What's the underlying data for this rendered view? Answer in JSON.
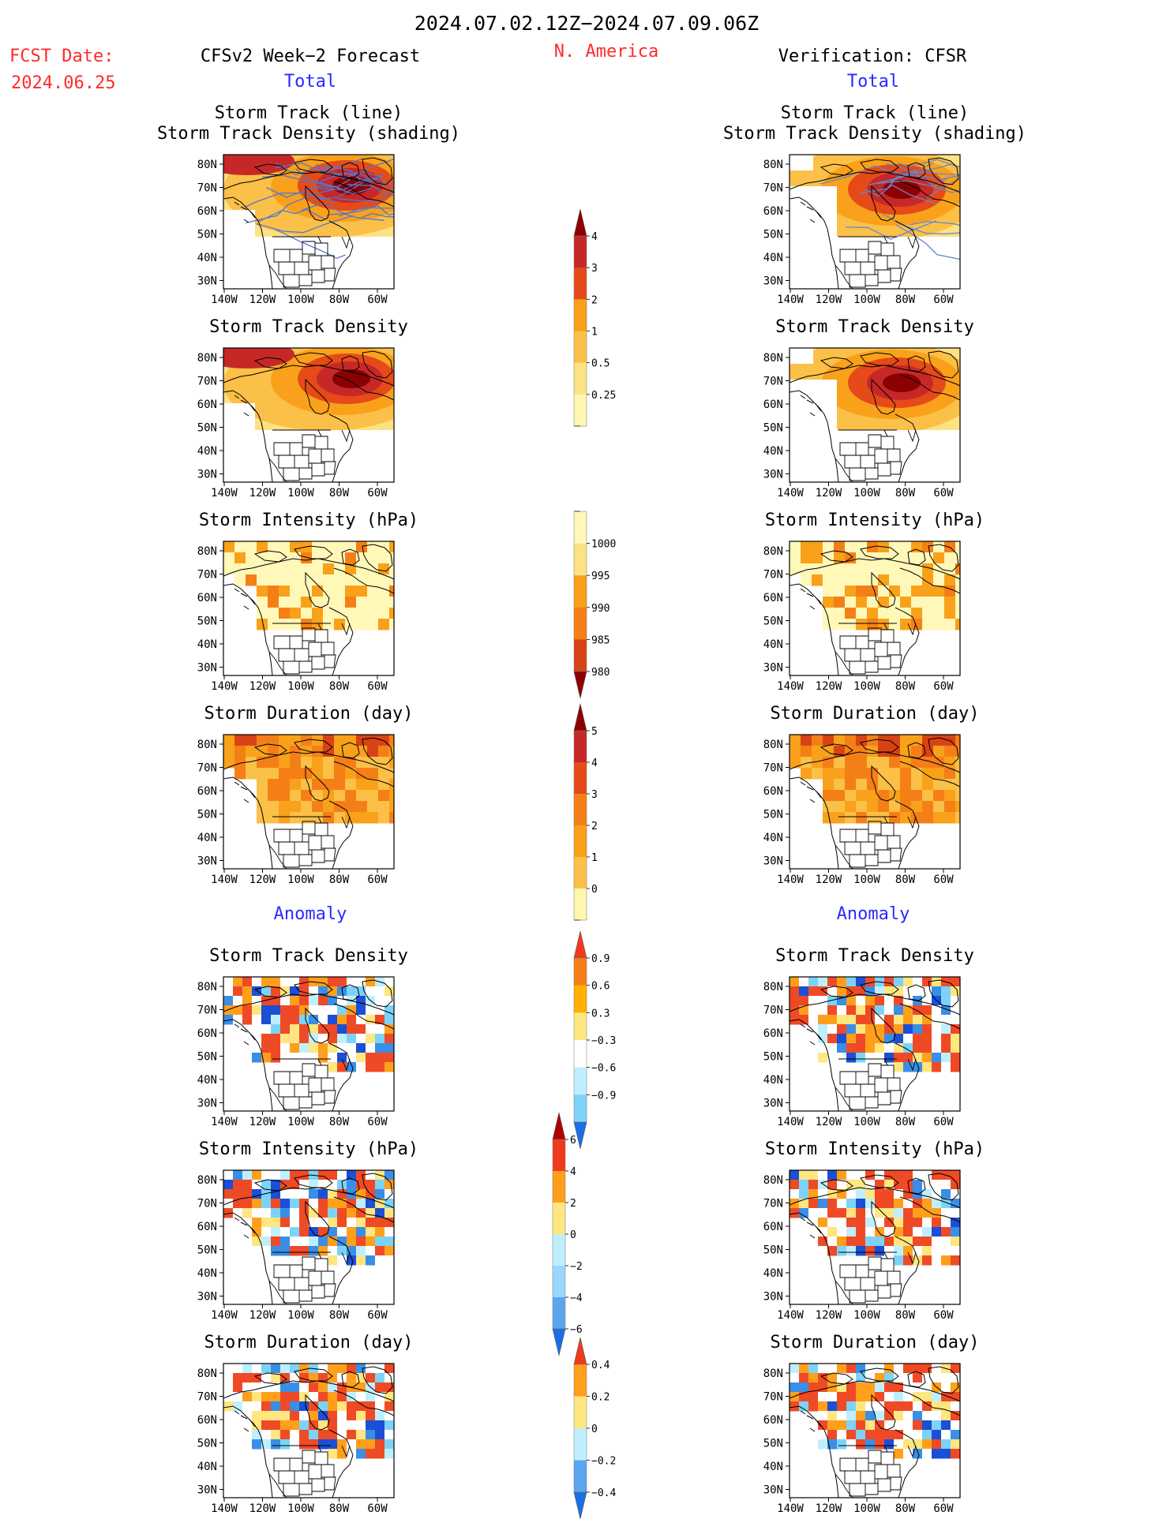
{
  "header": {
    "date_range": "2024.07.02.12Z−2024.07.09.06Z",
    "region": "N. America",
    "fcst_date_label": "FCST Date:",
    "fcst_date_value": "2024.06.25",
    "left_title": "CFSv2 Week−2 Forecast",
    "right_title": "Verification: CFSR",
    "total_label": "Total",
    "anomaly_label": "Anomaly"
  },
  "colors": {
    "red_text": "#ff2a2a",
    "blue_text": "#2a2aff"
  },
  "panel_titles": {
    "track_line": "Storm Track (line)",
    "track_density_shading": "Storm Track Density (shading)",
    "track_density": "Storm Track Density",
    "intensity": "Storm Intensity (hPa)",
    "duration": "Storm Duration (day)"
  },
  "axes": {
    "lat_labels": [
      "80N",
      "70N",
      "60N",
      "50N",
      "40N",
      "30N"
    ],
    "lon_labels": [
      "140W",
      "120W",
      "100W",
      "80W",
      "60W"
    ]
  },
  "colorbars": {
    "density": [
      "4",
      "3",
      "2",
      "1",
      "0.5",
      "0.25"
    ],
    "intensity": [
      "1000",
      "995",
      "990",
      "985",
      "980"
    ],
    "duration": [
      "5",
      "4",
      "3",
      "2",
      "1",
      "0"
    ],
    "density_anom": [
      "0.9",
      "0.6",
      "0.3",
      "−0.3",
      "−0.6",
      "−0.9"
    ],
    "intensity_anom": [
      "6",
      "4",
      "2",
      "0",
      "−2",
      "−4",
      "−6"
    ],
    "duration_anom": [
      "0.4",
      "0.2",
      "0",
      "−0.2",
      "−0.4"
    ]
  }
}
